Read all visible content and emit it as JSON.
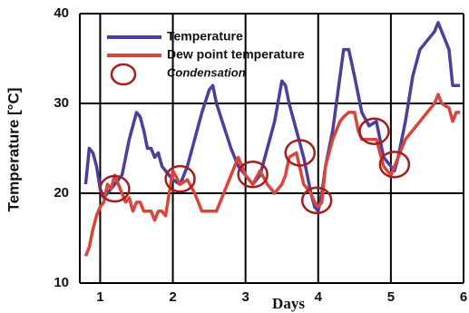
{
  "chart_data": {
    "type": "line",
    "x": [
      0.8,
      0.85,
      0.9,
      0.95,
      1.0,
      1.05,
      1.1,
      1.15,
      1.2,
      1.3,
      1.35,
      1.4,
      1.45,
      1.5,
      1.55,
      1.6,
      1.65,
      1.7,
      1.75,
      1.8,
      1.85,
      1.9,
      1.95,
      2.0,
      2.1,
      2.2,
      2.3,
      2.4,
      2.5,
      2.55,
      2.6,
      2.7,
      2.8,
      2.9,
      3.0,
      3.1,
      3.2,
      3.3,
      3.4,
      3.5,
      3.55,
      3.6,
      3.7,
      3.8,
      3.9,
      3.95,
      4.0,
      4.05,
      4.1,
      4.15,
      4.2,
      4.25,
      4.3,
      4.35,
      4.42,
      4.5,
      4.55,
      4.6,
      4.7,
      4.8,
      4.9,
      5.0,
      5.05,
      5.1,
      5.2,
      5.3,
      5.4,
      5.5,
      5.6,
      5.65,
      5.7,
      5.8,
      5.85,
      5.9,
      5.95
    ],
    "series": [
      {
        "name": "Temperature",
        "color": "#4b3f9e",
        "values": [
          21,
          25,
          24.5,
          23,
          20.5,
          19.5,
          20,
          20.5,
          21,
          22,
          24,
          26,
          27.5,
          29,
          28.5,
          27,
          25,
          25,
          24,
          24.5,
          23,
          22.5,
          22,
          21.5,
          21,
          23,
          26,
          29,
          31.5,
          32,
          30,
          27.5,
          25,
          23,
          22,
          21,
          22,
          25,
          28,
          32.5,
          32,
          30,
          27,
          24,
          20,
          18.5,
          18,
          20,
          23,
          25,
          27,
          30,
          33,
          36,
          36,
          33,
          31,
          29,
          27.5,
          28,
          24,
          23,
          22.5,
          24,
          28,
          33,
          36,
          37,
          38,
          39,
          38,
          36,
          32,
          32,
          32
        ]
      },
      {
        "name": "Dew point temperature",
        "color": "#d9453b",
        "values": [
          13,
          14,
          16,
          17.5,
          18.5,
          19,
          21,
          20.5,
          22,
          20,
          19,
          19.5,
          18,
          19,
          19,
          18,
          18,
          18,
          17,
          18,
          18,
          17.5,
          20,
          22.5,
          21,
          21.5,
          20,
          18,
          18,
          18,
          18,
          20,
          22,
          24,
          22,
          21,
          22.5,
          21,
          20,
          21,
          22,
          24,
          24.5,
          21,
          20,
          19,
          18.5,
          19,
          23,
          24.5,
          26,
          27,
          28,
          28.5,
          29,
          29,
          27,
          26,
          26,
          26,
          23,
          22,
          23,
          24,
          26,
          27,
          28,
          29,
          30,
          31,
          30,
          29.5,
          28,
          29,
          29
        ]
      }
    ],
    "condensation": {
      "name": "Condensation",
      "color": "#a81c1c",
      "x": [
        1.2,
        2.1,
        3.1,
        3.75,
        3.98,
        4.77,
        5.05
      ],
      "y": [
        20.5,
        21.6,
        22.1,
        24.5,
        19.2,
        26.9,
        23.2
      ]
    },
    "xlabel": "Days",
    "ylabel": "Temperature [°C]",
    "xlim": [
      0.72,
      6
    ],
    "ylim": [
      10,
      40
    ],
    "xticks": [
      1,
      2,
      3,
      4,
      5,
      6
    ],
    "yticks": [
      10,
      20,
      30,
      40
    ],
    "grid": true,
    "legend": "upper left"
  }
}
